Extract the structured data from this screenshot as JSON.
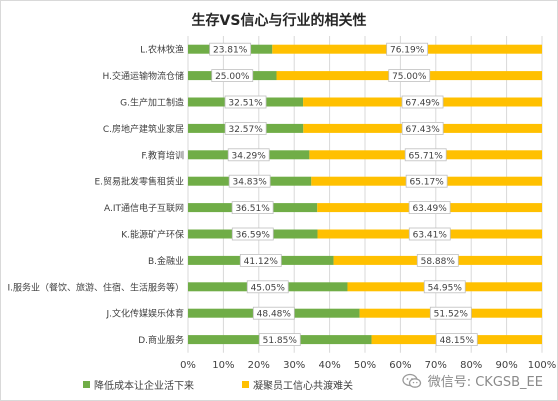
{
  "chart_data": {
    "type": "bar",
    "orientation": "horizontal",
    "stacked": "percent",
    "title": "生存VS信心与行业的相关性",
    "categories": [
      "L.农林牧渔",
      "H.交通运输物流仓储",
      "G.生产加工制造",
      "C.房地产建筑业家居",
      "F.教育培训",
      "E.贸易批发零售租赁业",
      "A.IT通信电子互联网",
      "K.能源矿产环保",
      "B.金融业",
      "I.服务业（餐饮、旅游、住宿、生活服务等）",
      "J.文化传媒娱乐体育",
      "D.商业服务"
    ],
    "series": [
      {
        "name": "降低成本让企业活下来",
        "values": [
          23.81,
          25.0,
          32.51,
          32.57,
          34.29,
          34.83,
          36.51,
          36.59,
          41.12,
          45.05,
          48.48,
          51.85
        ],
        "labels": [
          "23.81%",
          "25.00%",
          "32.51%",
          "32.57%",
          "34.29%",
          "34.83%",
          "36.51%",
          "36.59%",
          "41.12%",
          "45.05%",
          "48.48%",
          "51.85%"
        ],
        "color": "#70AD47"
      },
      {
        "name": "凝聚员工信心共渡难关",
        "values": [
          76.19,
          75.0,
          67.49,
          67.43,
          65.71,
          65.17,
          63.49,
          63.41,
          58.88,
          54.95,
          51.52,
          48.15
        ],
        "labels": [
          "76.19%",
          "75.00%",
          "67.49%",
          "67.43%",
          "65.71%",
          "65.17%",
          "63.49%",
          "63.41%",
          "58.88%",
          "54.95%",
          "51.52%",
          "48.15%"
        ],
        "color": "#FFC000"
      }
    ],
    "xlim": [
      0,
      100
    ],
    "x_ticks": [
      "0%",
      "10%",
      "20%",
      "30%",
      "40%",
      "50%",
      "60%",
      "70%",
      "80%",
      "90%",
      "100%"
    ],
    "grid": true,
    "legend_position": "bottom-left"
  },
  "watermark": {
    "text": "微信号: CKGSB_EE",
    "icon": "wechat-icon"
  },
  "colors": {
    "grid": "#D9D9D9",
    "label_box_border": "#BFBFBF",
    "text": "#404040"
  }
}
